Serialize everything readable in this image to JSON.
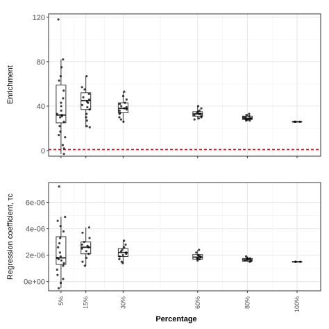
{
  "chart_data": {
    "type": "boxplot",
    "xlabel": "Percentage",
    "categories": [
      "5%",
      "15%",
      "30%",
      "60%",
      "80%",
      "100%"
    ],
    "x_values": [
      5,
      15,
      30,
      60,
      80,
      100
    ],
    "grid": true,
    "panels": [
      {
        "ylabel": "Enrichment",
        "ylim": [
          -5,
          123
        ],
        "yticks": [
          0,
          40,
          80,
          120
        ],
        "ytick_labels": [
          "0",
          "40",
          "80",
          "120"
        ],
        "reference_line": {
          "y": 1,
          "color": "#ff0000",
          "style": "dashed"
        },
        "boxes": [
          {
            "category": "5%",
            "min": -3,
            "q1": 25,
            "median": 32,
            "q3": 59,
            "max": 82
          },
          {
            "category": "15%",
            "min": 21,
            "q1": 37,
            "median": 45,
            "q3": 52,
            "max": 67
          },
          {
            "category": "30%",
            "min": 26,
            "q1": 34,
            "median": 38,
            "q3": 43,
            "max": 53
          },
          {
            "category": "60%",
            "min": 28,
            "q1": 31,
            "median": 33,
            "q3": 35,
            "max": 40
          },
          {
            "category": "80%",
            "min": 27,
            "q1": 28,
            "median": 29,
            "q3": 31,
            "max": 33
          },
          {
            "category": "100%",
            "min": 26,
            "q1": 26,
            "median": 26,
            "q3": 26,
            "max": 26
          }
        ],
        "points": [
          {
            "category": "5%",
            "values": [
              118,
              82,
              75,
              67,
              63,
              54,
              47,
              43,
              40,
              36,
              33,
              32,
              31,
              30,
              26,
              22,
              17,
              14,
              12,
              5,
              2,
              -3
            ]
          },
          {
            "category": "15%",
            "values": [
              67,
              57,
              55,
              51,
              48,
              46,
              44,
              43,
              41,
              39,
              37,
              33,
              30,
              27,
              22,
              21
            ]
          },
          {
            "category": "30%",
            "values": [
              53,
              49,
              46,
              43,
              42,
              40,
              39,
              38,
              37,
              36,
              34,
              33,
              30,
              28,
              26
            ]
          },
          {
            "category": "60%",
            "values": [
              40,
              38,
              36,
              35,
              34,
              33,
              33,
              32,
              31,
              30,
              29,
              28
            ]
          },
          {
            "category": "80%",
            "values": [
              33,
              32,
              31,
              30,
              30,
              29,
              29,
              28,
              28,
              27,
              27
            ]
          },
          {
            "category": "100%",
            "values": [
              26,
              26,
              26
            ]
          }
        ]
      },
      {
        "ylabel": "Regression coefficient, τc",
        "ylim": [
          -7e-07,
          7.5e-06
        ],
        "yticks": [
          0,
          2e-06,
          4e-06,
          6e-06
        ],
        "ytick_labels": [
          "0e+00",
          "2e-06",
          "4e-06",
          "6e-06"
        ],
        "boxes": [
          {
            "category": "5%",
            "min": -5e-07,
            "q1": 1.3e-06,
            "median": 1.8e-06,
            "q3": 3.4e-06,
            "max": 4.9e-06
          },
          {
            "category": "15%",
            "min": 1.2e-06,
            "q1": 2.1e-06,
            "median": 2.6e-06,
            "q3": 3e-06,
            "max": 4.1e-06
          },
          {
            "category": "30%",
            "min": 1.4e-06,
            "q1": 1.9e-06,
            "median": 2.2e-06,
            "q3": 2.5e-06,
            "max": 3.1e-06
          },
          {
            "category": "60%",
            "min": 1.6e-06,
            "q1": 1.7e-06,
            "median": 1.85e-06,
            "q3": 2.05e-06,
            "max": 2.4e-06
          },
          {
            "category": "80%",
            "min": 1.5e-06,
            "q1": 1.55e-06,
            "median": 1.65e-06,
            "q3": 1.75e-06,
            "max": 1.9e-06
          },
          {
            "category": "100%",
            "min": 1.5e-06,
            "q1": 1.5e-06,
            "median": 1.5e-06,
            "q3": 1.5e-06,
            "max": 1.5e-06
          }
        ],
        "points": [
          {
            "category": "5%",
            "values": [
              7.2e-06,
              4.9e-06,
              4.6e-06,
              4.2e-06,
              3.8e-06,
              3.3e-06,
              2.9e-06,
              2.6e-06,
              2.2e-06,
              1.9e-06,
              1.8e-06,
              1.7e-06,
              1.6e-06,
              1.4e-06,
              1.2e-06,
              9e-07,
              5e-07,
              2e-07,
              -1e-07,
              -5e-07
            ]
          },
          {
            "category": "15%",
            "values": [
              4.1e-06,
              3.7e-06,
              3.3e-06,
              3e-06,
              2.8e-06,
              2.7e-06,
              2.6e-06,
              2.5e-06,
              2.3e-06,
              2.1e-06,
              1.8e-06,
              1.5e-06,
              1.2e-06
            ]
          },
          {
            "category": "30%",
            "values": [
              3.1e-06,
              2.8e-06,
              2.6e-06,
              2.4e-06,
              2.3e-06,
              2.2e-06,
              2.1e-06,
              2e-06,
              1.9e-06,
              1.7e-06,
              1.5e-06,
              1.4e-06
            ]
          },
          {
            "category": "60%",
            "values": [
              2.4e-06,
              2.2e-06,
              2e-06,
              1.95e-06,
              1.9e-06,
              1.85e-06,
              1.8e-06,
              1.75e-06,
              1.7e-06,
              1.6e-06
            ]
          },
          {
            "category": "80%",
            "values": [
              1.9e-06,
              1.8e-06,
              1.75e-06,
              1.7e-06,
              1.65e-06,
              1.6e-06,
              1.55e-06,
              1.5e-06
            ]
          },
          {
            "category": "100%",
            "values": [
              1.5e-06,
              1.5e-06,
              1.5e-06
            ]
          }
        ]
      }
    ]
  }
}
